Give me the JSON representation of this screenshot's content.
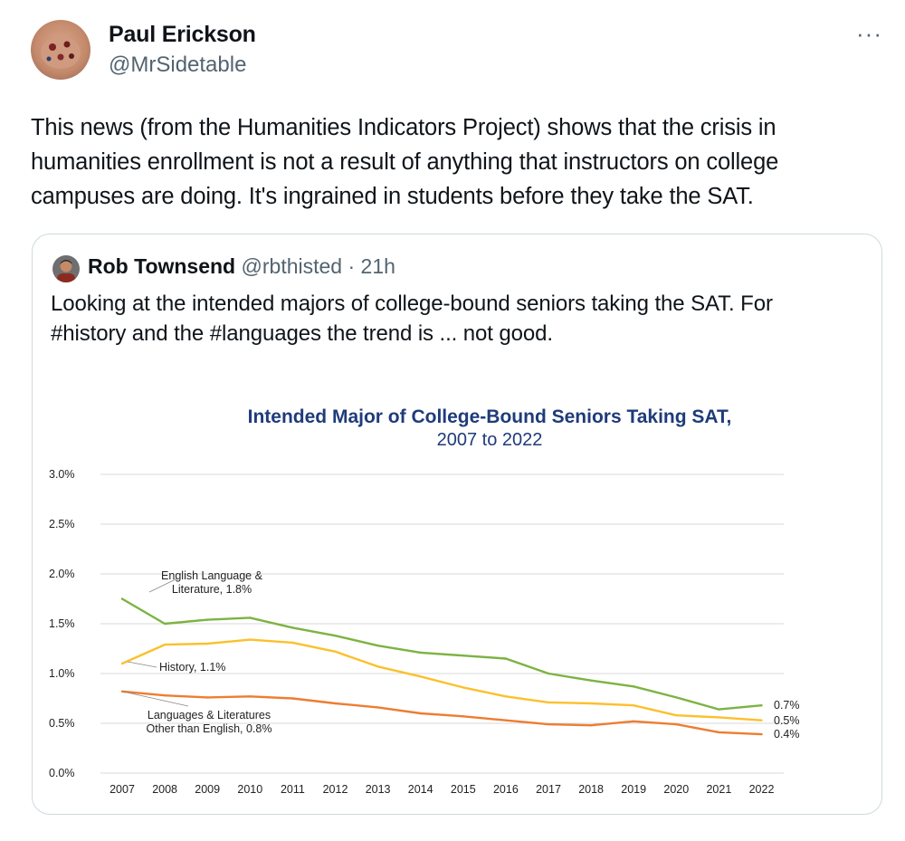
{
  "tweet": {
    "display_name": "Paul Erickson",
    "handle": "@MrSidetable",
    "more_icon": "more-horizontal-icon",
    "more_glyph": "···",
    "text": "This news (from the Humanities Indicators Project) shows that the crisis in\nhumanities enrollment is not a result of anything that instructors on college\ncampuses are doing. It's ingrained in students before they take the SAT."
  },
  "quote": {
    "display_name": "Rob Townsend",
    "handle": "@rbthisted",
    "separator": "·",
    "time": "21h",
    "text": "Looking at the intended majors of college-bound seniors taking the SAT. For\n#history and the #languages the trend is ... not good."
  },
  "colors": {
    "english": "#7cb342",
    "history": "#fbc02d",
    "languages": "#ed7d31",
    "grid": "#d9d9d9",
    "title": "#1f3b7a"
  },
  "chart_data": {
    "type": "line",
    "title": "Intended Major of College-Bound Seniors Taking SAT,",
    "subtitle": "2007 to 2022",
    "x": [
      "2007",
      "2008",
      "2009",
      "2010",
      "2011",
      "2012",
      "2013",
      "2014",
      "2015",
      "2016",
      "2017",
      "2018",
      "2019",
      "2020",
      "2021",
      "2022"
    ],
    "y_ticks": [
      "3.0%",
      "2.5%",
      "2.0%",
      "1.5%",
      "1.0%",
      "0.5%",
      "0.0%"
    ],
    "ylim": [
      0,
      3.0
    ],
    "grid": true,
    "series": [
      {
        "key": "english",
        "values": [
          1.75,
          1.5,
          1.54,
          1.56,
          1.46,
          1.38,
          1.28,
          1.21,
          1.18,
          1.15,
          1.0,
          0.93,
          0.87,
          0.76,
          0.64,
          0.68
        ],
        "label_lines": [
          "English Language &",
          "Literature, 1.8%"
        ],
        "end_label": "0.7%"
      },
      {
        "key": "history",
        "values": [
          1.1,
          1.29,
          1.3,
          1.34,
          1.31,
          1.22,
          1.07,
          0.97,
          0.86,
          0.77,
          0.71,
          0.7,
          0.68,
          0.58,
          0.56,
          0.53
        ],
        "label_lines": [
          "History, 1.1%"
        ],
        "end_label": "0.5%"
      },
      {
        "key": "languages",
        "values": [
          0.82,
          0.78,
          0.76,
          0.77,
          0.75,
          0.7,
          0.66,
          0.6,
          0.57,
          0.53,
          0.49,
          0.48,
          0.52,
          0.49,
          0.41,
          0.39
        ],
        "label_lines": [
          "Languages & Literatures",
          "Other than English, 0.8%"
        ],
        "end_label": "0.4%"
      }
    ]
  }
}
